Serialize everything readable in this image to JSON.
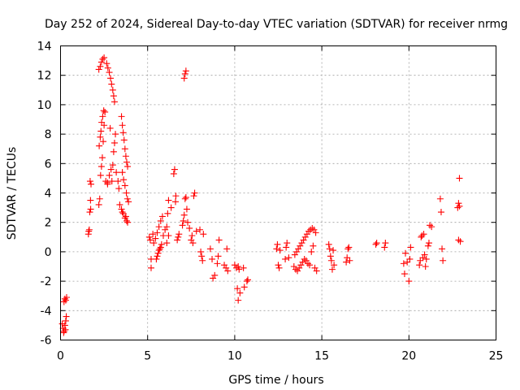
{
  "chart_data": {
    "type": "scatter",
    "title": "Day 252 of 2024, Sidereal Day-to-day VTEC variation (SDTVAR) for receiver nrmg",
    "xlabel": "GPS time / hours",
    "ylabel": "SDTVAR / TECUs",
    "xlim": [
      0,
      25
    ],
    "ylim": [
      -6,
      14
    ],
    "xticks": [
      0,
      5,
      10,
      15,
      20,
      25
    ],
    "yticks": [
      -6,
      -4,
      -2,
      0,
      2,
      4,
      6,
      8,
      10,
      12,
      14
    ],
    "grid": true,
    "marker": "plus",
    "color": "#ff0000",
    "series": [
      {
        "name": "SDTVAR",
        "points": [
          [
            0.1,
            -4.9
          ],
          [
            0.15,
            -5.2
          ],
          [
            0.2,
            -5.4
          ],
          [
            0.25,
            -5.0
          ],
          [
            0.3,
            -4.7
          ],
          [
            0.33,
            -4.4
          ],
          [
            0.18,
            -5.5
          ],
          [
            0.28,
            -5.3
          ],
          [
            0.2,
            -3.4
          ],
          [
            0.25,
            -3.2
          ],
          [
            0.3,
            -3.3
          ],
          [
            0.35,
            -3.1
          ],
          [
            1.6,
            1.2
          ],
          [
            1.65,
            1.5
          ],
          [
            1.68,
            2.7
          ],
          [
            1.72,
            3.5
          ],
          [
            1.75,
            4.6
          ],
          [
            1.7,
            4.8
          ],
          [
            1.62,
            1.4
          ],
          [
            1.73,
            2.9
          ],
          [
            2.2,
            3.2
          ],
          [
            2.25,
            3.6
          ],
          [
            2.3,
            5.2
          ],
          [
            2.35,
            5.8
          ],
          [
            2.4,
            6.4
          ],
          [
            2.45,
            7.5
          ],
          [
            2.5,
            8.6
          ],
          [
            2.55,
            9.5
          ],
          [
            2.22,
            7.2
          ],
          [
            2.28,
            7.8
          ],
          [
            2.32,
            8.2
          ],
          [
            2.36,
            8.8
          ],
          [
            2.42,
            9.2
          ],
          [
            2.48,
            9.6
          ],
          [
            2.2,
            12.4
          ],
          [
            2.28,
            12.6
          ],
          [
            2.35,
            12.9
          ],
          [
            2.42,
            13.1
          ],
          [
            2.5,
            13.2
          ],
          [
            2.6,
            4.8
          ],
          [
            2.7,
            4.6
          ],
          [
            2.8,
            5.2
          ],
          [
            2.9,
            5.6
          ],
          [
            3.0,
            5.9
          ],
          [
            3.05,
            6.8
          ],
          [
            3.1,
            7.4
          ],
          [
            3.15,
            8.0
          ],
          [
            2.85,
            8.4
          ],
          [
            2.65,
            12.8
          ],
          [
            2.72,
            12.5
          ],
          [
            2.8,
            12.2
          ],
          [
            2.87,
            11.8
          ],
          [
            2.93,
            11.4
          ],
          [
            3.0,
            11.0
          ],
          [
            3.05,
            10.6
          ],
          [
            3.1,
            10.2
          ],
          [
            2.7,
            4.7
          ],
          [
            2.95,
            4.8
          ],
          [
            3.2,
            5.4
          ],
          [
            3.3,
            4.8
          ],
          [
            3.35,
            4.3
          ],
          [
            3.4,
            3.2
          ],
          [
            3.5,
            2.9
          ],
          [
            3.6,
            2.6
          ],
          [
            3.7,
            2.3
          ],
          [
            3.8,
            2.1
          ],
          [
            3.85,
            2.0
          ],
          [
            3.55,
            2.7
          ],
          [
            3.75,
            2.4
          ],
          [
            3.5,
            9.2
          ],
          [
            3.55,
            8.6
          ],
          [
            3.6,
            8.1
          ],
          [
            3.65,
            7.6
          ],
          [
            3.7,
            7.0
          ],
          [
            3.75,
            6.5
          ],
          [
            3.8,
            6.1
          ],
          [
            3.85,
            5.8
          ],
          [
            3.55,
            5.4
          ],
          [
            3.62,
            4.9
          ],
          [
            3.7,
            4.5
          ],
          [
            3.78,
            4.0
          ],
          [
            3.84,
            3.6
          ],
          [
            3.9,
            3.4
          ],
          [
            5.1,
            1.0
          ],
          [
            5.15,
            0.8
          ],
          [
            5.2,
            -0.5
          ],
          [
            5.2,
            -1.1
          ],
          [
            5.3,
            1.2
          ],
          [
            5.35,
            0.6
          ],
          [
            5.5,
            -0.5
          ],
          [
            5.55,
            -0.3
          ],
          [
            5.6,
            -0.1
          ],
          [
            5.65,
            0.1
          ],
          [
            5.7,
            0.2
          ],
          [
            5.75,
            0.3
          ],
          [
            5.8,
            0.5
          ],
          [
            5.45,
            0.9
          ],
          [
            5.55,
            1.3
          ],
          [
            5.65,
            1.7
          ],
          [
            5.75,
            2.1
          ],
          [
            5.85,
            2.4
          ],
          [
            5.9,
            1.1
          ],
          [
            6.0,
            1.5
          ],
          [
            6.1,
            1.7
          ],
          [
            6.2,
            1.1
          ],
          [
            6.1,
            0.6
          ],
          [
            6.15,
            2.6
          ],
          [
            6.2,
            3.5
          ],
          [
            6.35,
            3.0
          ],
          [
            6.5,
            5.3
          ],
          [
            6.55,
            5.6
          ],
          [
            6.6,
            3.4
          ],
          [
            6.62,
            3.8
          ],
          [
            6.7,
            0.8
          ],
          [
            6.75,
            1.0
          ],
          [
            6.8,
            1.2
          ],
          [
            7.0,
            1.8
          ],
          [
            7.05,
            2.1
          ],
          [
            7.1,
            2.5
          ],
          [
            7.15,
            3.6
          ],
          [
            7.2,
            3.7
          ],
          [
            7.25,
            2.9
          ],
          [
            7.3,
            2.0
          ],
          [
            7.1,
            11.8
          ],
          [
            7.15,
            12.1
          ],
          [
            7.2,
            12.3
          ],
          [
            7.4,
            1.6
          ],
          [
            7.5,
            0.8
          ],
          [
            7.55,
            1.1
          ],
          [
            7.6,
            0.6
          ],
          [
            7.65,
            3.8
          ],
          [
            7.7,
            4.0
          ],
          [
            7.8,
            1.4
          ],
          [
            8.0,
            1.5
          ],
          [
            8.05,
            0.0
          ],
          [
            8.1,
            -0.3
          ],
          [
            8.15,
            -0.6
          ],
          [
            8.2,
            1.2
          ],
          [
            8.6,
            0.2
          ],
          [
            8.7,
            -0.5
          ],
          [
            8.75,
            -1.8
          ],
          [
            8.85,
            -1.6
          ],
          [
            9.0,
            -0.8
          ],
          [
            9.05,
            -0.3
          ],
          [
            9.1,
            0.8
          ],
          [
            9.4,
            -0.9
          ],
          [
            9.5,
            -1.1
          ],
          [
            9.55,
            0.2
          ],
          [
            9.6,
            -1.3
          ],
          [
            10.0,
            -0.9
          ],
          [
            10.1,
            -1.1
          ],
          [
            10.2,
            -1.0
          ],
          [
            10.25,
            -1.2
          ],
          [
            10.15,
            -2.5
          ],
          [
            10.2,
            -3.3
          ],
          [
            10.3,
            -2.8
          ],
          [
            10.5,
            -1.1
          ],
          [
            10.55,
            -2.4
          ],
          [
            10.7,
            -2.0
          ],
          [
            10.75,
            -1.9
          ],
          [
            12.4,
            0.2
          ],
          [
            12.45,
            0.5
          ],
          [
            12.5,
            -0.9
          ],
          [
            12.55,
            -1.1
          ],
          [
            12.6,
            0.1
          ],
          [
            12.9,
            -0.5
          ],
          [
            12.95,
            0.3
          ],
          [
            13.0,
            0.6
          ],
          [
            13.1,
            -0.4
          ],
          [
            13.4,
            -1.0
          ],
          [
            13.5,
            -1.2
          ],
          [
            13.6,
            -1.3
          ],
          [
            13.7,
            -1.1
          ],
          [
            13.8,
            -0.9
          ],
          [
            13.9,
            -0.7
          ],
          [
            14.0,
            -0.5
          ],
          [
            13.45,
            -0.2
          ],
          [
            13.55,
            0.0
          ],
          [
            13.65,
            0.2
          ],
          [
            13.75,
            0.4
          ],
          [
            13.85,
            0.6
          ],
          [
            13.95,
            0.8
          ],
          [
            14.05,
            1.0
          ],
          [
            14.15,
            1.2
          ],
          [
            14.25,
            1.4
          ],
          [
            14.35,
            1.5
          ],
          [
            14.45,
            1.6
          ],
          [
            14.55,
            1.5
          ],
          [
            14.65,
            1.3
          ],
          [
            14.1,
            -0.6
          ],
          [
            14.2,
            -0.8
          ],
          [
            14.3,
            -0.9
          ],
          [
            14.4,
            0.0
          ],
          [
            14.5,
            0.4
          ],
          [
            14.6,
            -1.1
          ],
          [
            14.7,
            -1.3
          ],
          [
            15.4,
            0.5
          ],
          [
            15.45,
            0.2
          ],
          [
            15.5,
            -0.3
          ],
          [
            15.55,
            -0.6
          ],
          [
            15.6,
            -1.2
          ],
          [
            15.65,
            0.1
          ],
          [
            15.7,
            -0.9
          ],
          [
            16.4,
            -0.7
          ],
          [
            16.45,
            -0.4
          ],
          [
            16.5,
            0.2
          ],
          [
            16.55,
            0.3
          ],
          [
            16.6,
            -0.6
          ],
          [
            18.1,
            0.5
          ],
          [
            18.15,
            0.6
          ],
          [
            18.6,
            0.3
          ],
          [
            18.65,
            0.6
          ],
          [
            19.7,
            -0.8
          ],
          [
            19.75,
            -1.5
          ],
          [
            19.8,
            -0.1
          ],
          [
            19.9,
            -0.7
          ],
          [
            20.0,
            -2.0
          ],
          [
            20.05,
            -0.5
          ],
          [
            20.1,
            0.3
          ],
          [
            20.6,
            -0.9
          ],
          [
            20.65,
            -0.6
          ],
          [
            20.7,
            1.0
          ],
          [
            20.75,
            1.1
          ],
          [
            20.8,
            -0.4
          ],
          [
            20.85,
            1.2
          ],
          [
            20.9,
            -0.2
          ],
          [
            20.95,
            -1.0
          ],
          [
            21.0,
            -0.5
          ],
          [
            21.1,
            0.4
          ],
          [
            21.15,
            0.6
          ],
          [
            21.2,
            1.8
          ],
          [
            21.3,
            1.7
          ],
          [
            21.8,
            3.6
          ],
          [
            21.85,
            2.7
          ],
          [
            21.9,
            0.2
          ],
          [
            21.95,
            -0.6
          ],
          [
            22.8,
            3.0
          ],
          [
            22.85,
            3.3
          ],
          [
            22.9,
            5.0
          ],
          [
            22.95,
            0.7
          ],
          [
            22.85,
            0.8
          ],
          [
            22.9,
            3.1
          ]
        ]
      }
    ]
  }
}
